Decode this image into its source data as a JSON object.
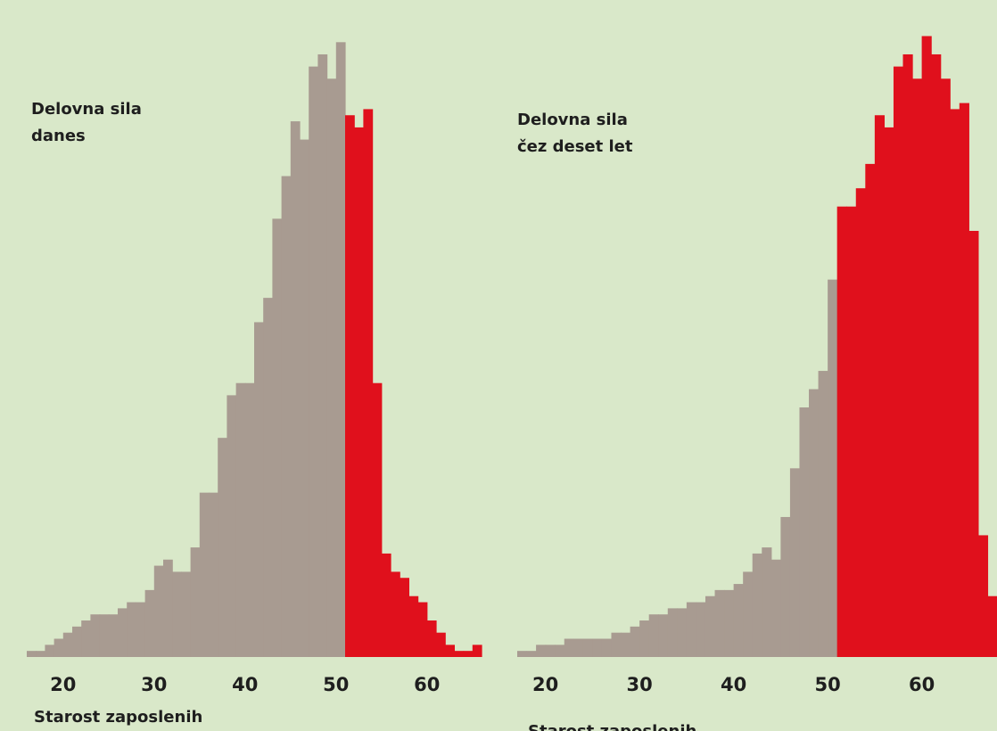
{
  "chart_data": [
    {
      "type": "histogram",
      "annotation": [
        "Delovna sila",
        "danes"
      ],
      "x_label": "Starost zaposlenih",
      "xlim": [
        16,
        66
      ],
      "xticks": [
        20,
        30,
        40,
        50,
        60
      ],
      "ylim": [
        0,
        105
      ],
      "series": [
        {
          "color": "#a89b91",
          "bins": [
            16,
            17,
            18,
            19,
            20,
            21,
            22,
            23,
            24,
            25,
            26,
            27,
            28,
            29,
            30,
            31,
            32,
            33,
            34,
            35,
            36,
            37,
            38,
            39,
            40,
            41,
            42,
            43,
            44,
            45,
            46,
            47,
            48,
            49,
            50,
            51
          ],
          "values": [
            1,
            1,
            2,
            3,
            4,
            5,
            6,
            7,
            7,
            7,
            8,
            9,
            9,
            11,
            15,
            16,
            14,
            14,
            18,
            27,
            27,
            36,
            43,
            45,
            45,
            55,
            59,
            72,
            79,
            88,
            85,
            97,
            99,
            95,
            101
          ]
        },
        {
          "color": "#e0101c",
          "bins": [
            51,
            52,
            53,
            54,
            55,
            56,
            57,
            58,
            59,
            60,
            61,
            62,
            63,
            64,
            65,
            66
          ],
          "values": [
            89,
            87,
            90,
            45,
            17,
            14,
            13,
            10,
            9,
            6,
            4,
            2,
            1,
            1,
            2
          ]
        }
      ]
    },
    {
      "type": "histogram",
      "annotation": [
        "Delovna sila",
        "čez deset let"
      ],
      "x_label": "Starost zaposlenih",
      "xlim": [
        17,
        68
      ],
      "xticks": [
        20,
        30,
        40,
        50,
        60
      ],
      "ylim": [
        0,
        105
      ],
      "series": [
        {
          "color": "#a89b91",
          "bins": [
            17,
            18,
            19,
            20,
            21,
            22,
            23,
            24,
            25,
            26,
            27,
            28,
            29,
            30,
            31,
            32,
            33,
            34,
            35,
            36,
            37,
            38,
            39,
            40,
            41,
            42,
            43,
            44,
            45,
            46,
            47,
            48,
            49,
            50,
            51
          ],
          "values": [
            1,
            1,
            2,
            2,
            2,
            3,
            3,
            3,
            3,
            3,
            4,
            4,
            5,
            6,
            7,
            7,
            8,
            8,
            9,
            9,
            10,
            11,
            11,
            12,
            14,
            17,
            18,
            16,
            23,
            31,
            41,
            44,
            47,
            62
          ]
        },
        {
          "color": "#e0101c",
          "bins": [
            51,
            52,
            53,
            54,
            55,
            56,
            57,
            58,
            59,
            60,
            61,
            62,
            63,
            64,
            65,
            66,
            67,
            68
          ],
          "values": [
            74,
            74,
            77,
            81,
            89,
            87,
            97,
            99,
            95,
            102,
            99,
            95,
            90,
            91,
            70,
            20,
            10
          ]
        }
      ]
    }
  ]
}
